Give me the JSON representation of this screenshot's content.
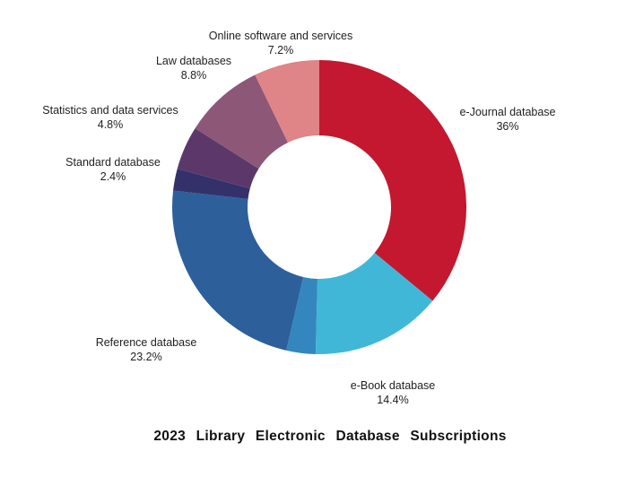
{
  "chart_data": {
    "type": "pie",
    "subtype": "donut",
    "title": "2023 Library Electronic Database Subscriptions",
    "start_angle": "top, clockwise",
    "donut_hole_ratio": 0.49,
    "background_color": "#ffffff",
    "label_text_color": "#1f1f1f",
    "legend_position": "none (labels placed around chart)",
    "segments": [
      {
        "id": "e-journal-database",
        "label": "e-Journal database",
        "value": 36,
        "pct_label": "36%",
        "color": "#C3182F"
      },
      {
        "id": "e-book-database",
        "label": "e-Book database",
        "value": 14.4,
        "pct_label": "14.4%",
        "color": "#41B7D8"
      },
      {
        "id": "unlabeled-segment",
        "label": "",
        "value": 3.2,
        "pct_label": "",
        "color": "#3387BE"
      },
      {
        "id": "reference-database",
        "label": "Reference database",
        "value": 23.2,
        "pct_label": "23.2%",
        "color": "#2D5F9B"
      },
      {
        "id": "standard-database",
        "label": "Standard database",
        "value": 2.4,
        "pct_label": "2.4%",
        "color": "#34316A"
      },
      {
        "id": "statistics-and-data-services",
        "label": "Statistics and data services",
        "value": 4.8,
        "pct_label": "4.8%",
        "color": "#5B3869"
      },
      {
        "id": "law-databases",
        "label": "Law databases",
        "value": 8.8,
        "pct_label": "8.8%",
        "color": "#8D5778"
      },
      {
        "id": "online-software-and-services",
        "label": "Online software and services",
        "value": 7.2,
        "pct_label": "7.2%",
        "color": "#DF8487"
      }
    ]
  }
}
